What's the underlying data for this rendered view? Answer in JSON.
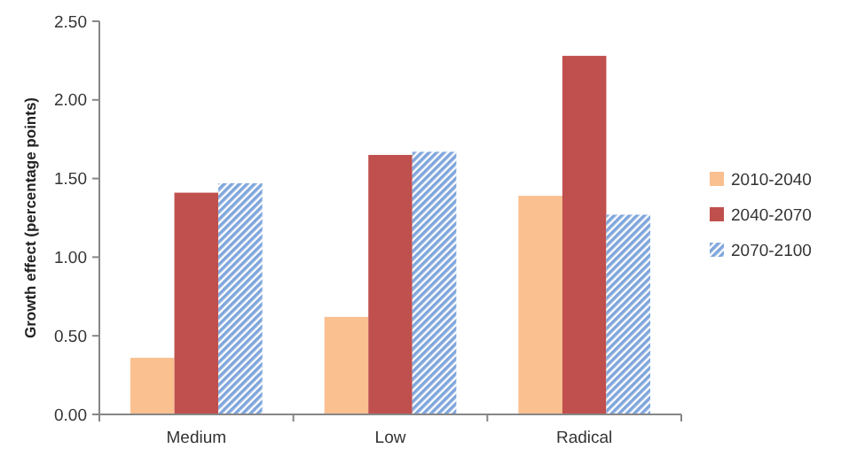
{
  "chart_data": {
    "type": "bar",
    "ylabel": "Growth effect (percentage points)",
    "categories": [
      "Medium",
      "Low",
      "Radical"
    ],
    "series": [
      {
        "name": "2010-2040",
        "color": "#fac090",
        "values": [
          0.36,
          0.62,
          1.39
        ]
      },
      {
        "name": "2040-2070",
        "color": "#c0504d",
        "values": [
          1.41,
          1.65,
          2.28
        ]
      },
      {
        "name": "2070-2100",
        "color": "#7fa6dc",
        "values": [
          1.47,
          1.67,
          1.27
        ]
      }
    ],
    "ylim": [
      0,
      2.5
    ],
    "yticks": [
      {
        "value": 0,
        "label": "0.00"
      },
      {
        "value": 0.5,
        "label": "0.50"
      },
      {
        "value": 1,
        "label": "1.00"
      },
      {
        "value": 1.5,
        "label": "1.50"
      },
      {
        "value": 2,
        "label": "2.00"
      },
      {
        "value": 2.5,
        "label": "2.50"
      }
    ],
    "legend": "right",
    "grid": false
  }
}
